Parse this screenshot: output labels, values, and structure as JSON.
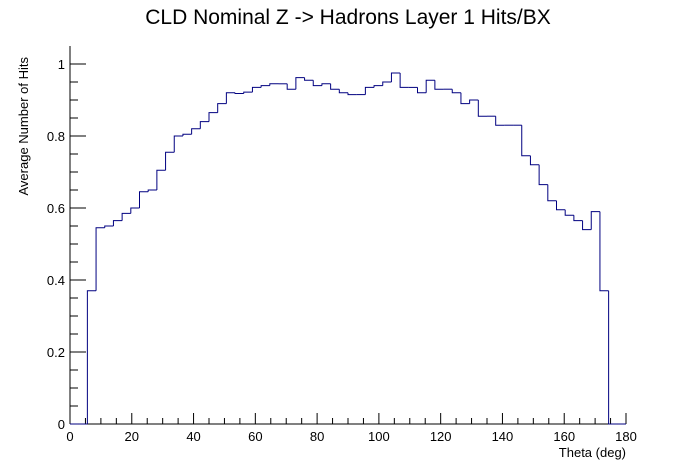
{
  "chart_data": {
    "type": "histogram",
    "title": "CLD Nominal Z -> Hadrons Layer 1 Hits/BX",
    "x_label": "Theta (deg)",
    "y_label": "Average Number of Hits",
    "bins": [
      0,
      2.8125,
      5.625,
      8.4375,
      11.25,
      14.0625,
      16.875,
      19.6875,
      22.5,
      25.3125,
      28.125,
      30.9375,
      33.75,
      36.5625,
      39.375,
      42.1875,
      45,
      47.8125,
      50.625,
      53.4375,
      56.25,
      59.0625,
      61.875,
      64.6875,
      67.5,
      70.3125,
      73.125,
      75.9375,
      78.75,
      81.5625,
      84.375,
      87.1875,
      90,
      92.8125,
      95.625,
      98.4375,
      101.25,
      104.0625,
      106.875,
      109.6875,
      112.5,
      115.3125,
      118.125,
      120.9375,
      123.75,
      126.5625,
      129.375,
      132.1875,
      135,
      137.8125,
      140.625,
      143.4375,
      146.25,
      149.0625,
      151.875,
      154.6875,
      157.5,
      160.3125,
      163.125,
      165.9375,
      168.75,
      171.5625,
      174.375,
      177.1875,
      180
    ],
    "values": [
      0,
      0,
      0.37,
      0.545,
      0.55,
      0.565,
      0.585,
      0.6,
      0.645,
      0.65,
      0.705,
      0.755,
      0.8,
      0.805,
      0.82,
      0.84,
      0.865,
      0.89,
      0.92,
      0.918,
      0.922,
      0.935,
      0.94,
      0.945,
      0.945,
      0.93,
      0.962,
      0.955,
      0.94,
      0.945,
      0.93,
      0.92,
      0.915,
      0.915,
      0.935,
      0.94,
      0.95,
      0.975,
      0.935,
      0.935,
      0.92,
      0.955,
      0.93,
      0.93,
      0.92,
      0.89,
      0.9,
      0.855,
      0.855,
      0.83,
      0.83,
      0.83,
      0.745,
      0.72,
      0.665,
      0.62,
      0.595,
      0.58,
      0.565,
      0.54,
      0.59,
      0.37,
      0,
      0
    ],
    "color": "#000080",
    "xlim": [
      0,
      180
    ],
    "xticks": [
      0,
      20,
      40,
      60,
      80,
      100,
      120,
      140,
      160,
      180
    ],
    "ylim": [
      0,
      1.05
    ],
    "yticks": [
      0,
      0.2,
      0.4,
      0.6,
      0.8,
      1
    ]
  }
}
